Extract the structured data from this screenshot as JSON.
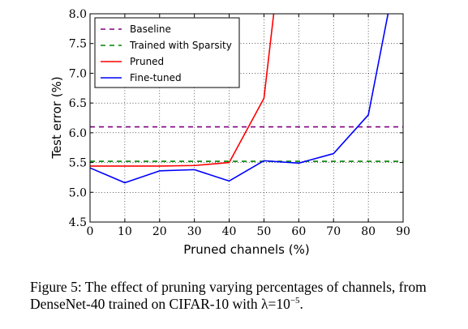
{
  "chart_data": {
    "type": "line",
    "xlabel": "Pruned channels (%)",
    "ylabel": "Test error (%)",
    "xlim": [
      0,
      90
    ],
    "ylim": [
      4.5,
      8.0
    ],
    "xticks": [
      0,
      10,
      20,
      30,
      40,
      50,
      60,
      70,
      80,
      90
    ],
    "xtick_labels": [
      "0",
      "10",
      "20",
      "30",
      "40",
      "50",
      "60",
      "70",
      "80",
      "90"
    ],
    "yticks": [
      4.5,
      5.0,
      5.5,
      6.0,
      6.5,
      7.0,
      7.5,
      8.0
    ],
    "ytick_labels": [
      "4.5",
      "5.0",
      "5.5",
      "6.0",
      "6.5",
      "7.0",
      "7.5",
      "8.0"
    ],
    "grid": true,
    "legend_position": "top-left",
    "series": [
      {
        "name": "Baseline",
        "style": "dashed",
        "color": "#800080",
        "x": [
          0,
          90
        ],
        "y": [
          6.1,
          6.1
        ]
      },
      {
        "name": "Trained with Sparsity",
        "style": "dashed",
        "color": "#008000",
        "x": [
          0,
          90
        ],
        "y": [
          5.52,
          5.52
        ]
      },
      {
        "name": "Pruned",
        "style": "solid",
        "color": "#ff0000",
        "x": [
          0,
          10,
          20,
          30,
          40,
          50,
          53
        ],
        "y": [
          5.44,
          5.44,
          5.44,
          5.45,
          5.5,
          6.58,
          8.1
        ]
      },
      {
        "name": "Fine-tuned",
        "style": "solid",
        "color": "#0000ff",
        "x": [
          0,
          10,
          20,
          30,
          40,
          50,
          60,
          70,
          80,
          86
        ],
        "y": [
          5.41,
          5.16,
          5.36,
          5.38,
          5.19,
          5.53,
          5.49,
          5.65,
          6.3,
          8.1
        ]
      }
    ]
  },
  "caption": {
    "text": "Figure 5: The effect of pruning varying percentages of channels, from DenseNet-40 trained on CIFAR-10 with λ=10",
    "superscript": "−5",
    "suffix": "."
  }
}
